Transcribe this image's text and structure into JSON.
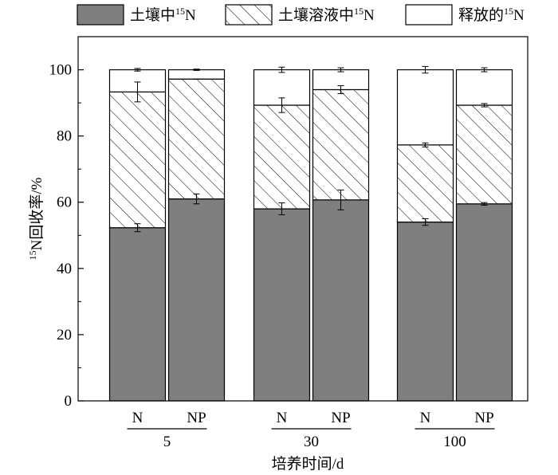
{
  "chart_data": {
    "type": "bar",
    "stacked": true,
    "normalized": false,
    "ylabel_sup": "15",
    "ylabel": "N回收率/%",
    "xlabel": "培养时间/d",
    "ylim": [
      0,
      110
    ],
    "yticks": [
      0,
      20,
      40,
      60,
      80,
      100
    ],
    "groups": [
      {
        "label": "5",
        "bars": [
          {
            "label": "N",
            "values": [
              52.3,
              41.0,
              6.7
            ],
            "errors": [
              1.2,
              3.0,
              0.4
            ]
          },
          {
            "label": "NP",
            "values": [
              61.0,
              36.2,
              2.8
            ],
            "errors": [
              1.5,
              0.0,
              0.2
            ]
          }
        ]
      },
      {
        "label": "30",
        "bars": [
          {
            "label": "N",
            "values": [
              58.0,
              31.3,
              10.7
            ],
            "errors": [
              1.8,
              2.2,
              0.8
            ]
          },
          {
            "label": "NP",
            "values": [
              60.7,
              33.3,
              6.0
            ],
            "errors": [
              3.0,
              1.2,
              0.6
            ]
          }
        ]
      },
      {
        "label": "100",
        "bars": [
          {
            "label": "N",
            "values": [
              54.0,
              23.3,
              22.7
            ],
            "errors": [
              1.0,
              0.6,
              1.0
            ]
          },
          {
            "label": "NP",
            "values": [
              59.5,
              29.8,
              10.7
            ],
            "errors": [
              0.4,
              0.5,
              0.6
            ]
          }
        ]
      }
    ],
    "series": [
      {
        "name_pre": "土壤中",
        "name_sup": "15",
        "name_post": "N",
        "fill": "#7f7f7f",
        "pattern": "none"
      },
      {
        "name_pre": "土壤溶液中",
        "name_sup": "15",
        "name_post": "N",
        "fill": "#ffffff",
        "pattern": "hatch"
      },
      {
        "name_pre": "释放的",
        "name_sup": "15",
        "name_post": "N",
        "fill": "#ffffff",
        "pattern": "none"
      }
    ],
    "legend_position": "top",
    "grid": false
  }
}
